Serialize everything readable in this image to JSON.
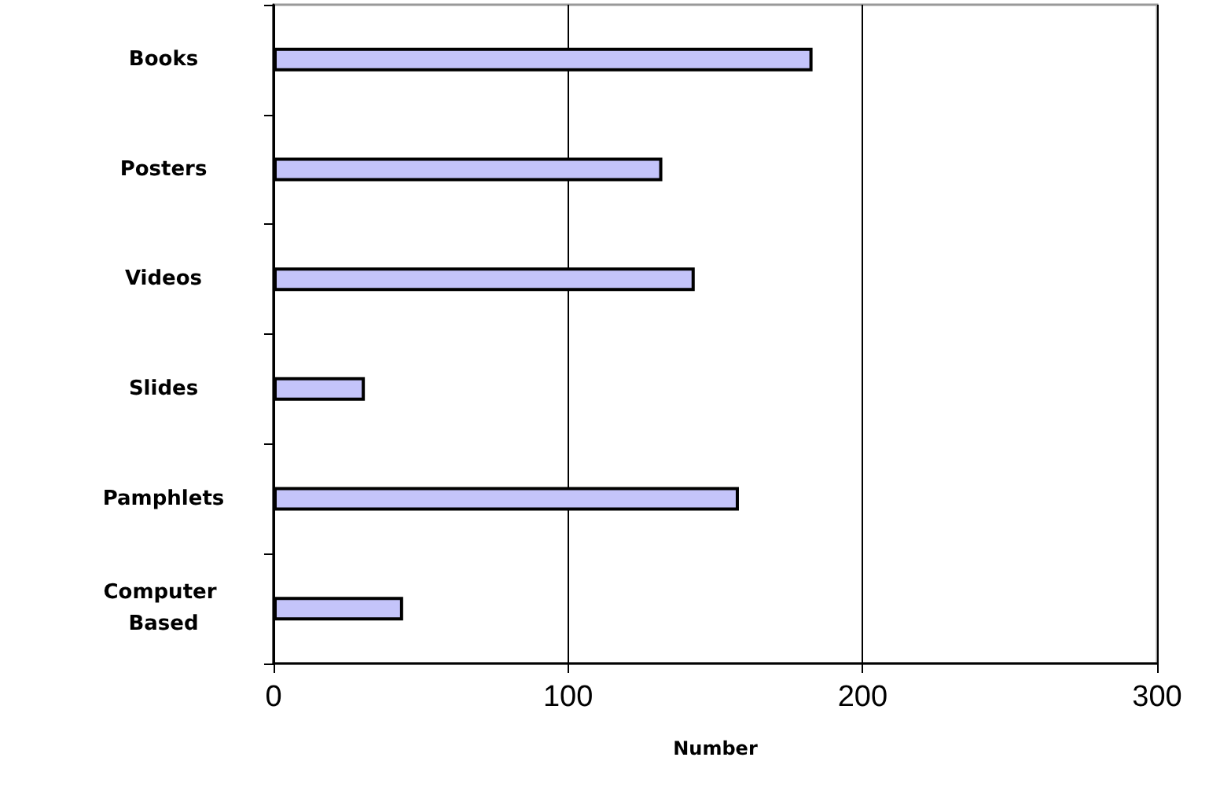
{
  "chart_data": {
    "type": "bar",
    "orientation": "horizontal",
    "categories": [
      "Books",
      "Posters",
      "Videos",
      "Slides",
      "Pamphlets",
      "Computer Based"
    ],
    "values": [
      183,
      132,
      143,
      31,
      158,
      44
    ],
    "color": "#c4c4fa",
    "xlabel": "Number",
    "xlim": [
      0,
      300
    ],
    "xticks": [
      0,
      100,
      200,
      300
    ],
    "grid": "x"
  }
}
